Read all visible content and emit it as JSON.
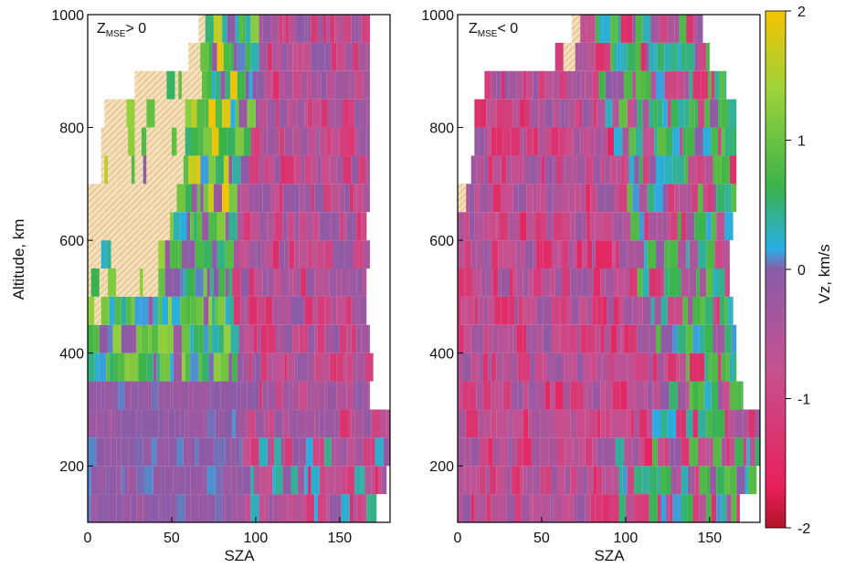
{
  "chart_data": {
    "type": "heatmap",
    "colorbar": {
      "label": "Vz, km/s",
      "range": [
        -2,
        2
      ],
      "ticks": [
        "2",
        "1",
        "0",
        "-1",
        "-2"
      ],
      "colors": {
        "positive_high": "#f5c400",
        "positive_mid": "#9ed23a",
        "positive_low": "#3bb34a",
        "near_zero_pos": "#29aee6",
        "zero": "#8a5ca8",
        "negative_mid": "#c7508f",
        "negative_high": "#e8205a",
        "floor": "#b01426"
      }
    },
    "shared_ylabel": "Altitude, km",
    "panels": [
      {
        "annotation_main": "Z",
        "annotation_sub": "MSE",
        "annotation_rest": "> 0",
        "xlabel": "SZA",
        "xlim": [
          0,
          180
        ],
        "ylim": [
          100,
          1000
        ],
        "xticks": [
          "0",
          "50",
          "100",
          "150"
        ],
        "yticks": [
          "200",
          "400",
          "600",
          "800",
          "1000"
        ],
        "altitude_bins": [
          100,
          150,
          200,
          250,
          300,
          350,
          400,
          450,
          500,
          550,
          600,
          650,
          700,
          750,
          800,
          850,
          900,
          950
        ],
        "coverage": [
          [
            0,
            172
          ],
          [
            0,
            178
          ],
          [
            0,
            180
          ],
          [
            0,
            180
          ],
          [
            0,
            168
          ],
          [
            0,
            170
          ],
          [
            0,
            168
          ],
          [
            0,
            166
          ],
          [
            0,
            166
          ],
          [
            0,
            168
          ],
          [
            0,
            166
          ],
          [
            0,
            168
          ],
          [
            8,
            168
          ],
          [
            8,
            168
          ],
          [
            10,
            168
          ],
          [
            28,
            168
          ],
          [
            60,
            168
          ],
          [
            66,
            168
          ]
        ],
        "regime_boundary": [
          92,
          92,
          92,
          92,
          92,
          92,
          90,
          88,
          86,
          86,
          88,
          90,
          92,
          96,
          98,
          100,
          100,
          100
        ],
        "hatched_region": [
          [
            0,
            0
          ],
          [
            0,
            0
          ],
          [
            0,
            0
          ],
          [
            0,
            0
          ],
          [
            0,
            0
          ],
          [
            0,
            0
          ],
          [
            0,
            0
          ],
          [
            0,
            10
          ],
          [
            0,
            40
          ],
          [
            0,
            42
          ],
          [
            0,
            48
          ],
          [
            0,
            52
          ],
          [
            6,
            56
          ],
          [
            10,
            60
          ],
          [
            10,
            64
          ],
          [
            28,
            66
          ],
          [
            60,
            70
          ],
          [
            66,
            76
          ]
        ]
      },
      {
        "annotation_main": "Z",
        "annotation_sub": "MSE",
        "annotation_rest": "< 0",
        "xlabel": "SZA",
        "xlim": [
          0,
          180
        ],
        "ylim": [
          100,
          1000
        ],
        "xticks": [
          "0",
          "50",
          "100",
          "150"
        ],
        "yticks": [
          "200",
          "400",
          "600",
          "800",
          "1000"
        ],
        "altitude_bins": [
          100,
          150,
          200,
          250,
          300,
          350,
          400,
          450,
          500,
          550,
          600,
          650,
          700,
          750,
          800,
          850,
          900,
          950
        ],
        "coverage": [
          [
            0,
            168
          ],
          [
            0,
            178
          ],
          [
            0,
            180
          ],
          [
            0,
            180
          ],
          [
            0,
            170
          ],
          [
            0,
            166
          ],
          [
            0,
            166
          ],
          [
            0,
            164
          ],
          [
            0,
            162
          ],
          [
            0,
            162
          ],
          [
            0,
            164
          ],
          [
            0,
            166
          ],
          [
            8,
            166
          ],
          [
            10,
            166
          ],
          [
            10,
            166
          ],
          [
            16,
            160
          ],
          [
            58,
            150
          ],
          [
            68,
            146
          ]
        ],
        "regime_boundary": [
          100,
          110,
          114,
          118,
          120,
          122,
          118,
          112,
          108,
          104,
          100,
          96,
          94,
          92,
          90,
          86,
          84,
          82
        ],
        "hatched_region": [
          [
            0,
            0
          ],
          [
            0,
            0
          ],
          [
            0,
            0
          ],
          [
            0,
            0
          ],
          [
            0,
            0
          ],
          [
            0,
            0
          ],
          [
            0,
            0
          ],
          [
            0,
            0
          ],
          [
            0,
            0
          ],
          [
            0,
            0
          ],
          [
            0,
            0
          ],
          [
            0,
            4
          ],
          [
            0,
            0
          ],
          [
            0,
            0
          ],
          [
            0,
            0
          ],
          [
            0,
            0
          ],
          [
            64,
            70
          ],
          [
            68,
            74
          ]
        ]
      }
    ]
  }
}
